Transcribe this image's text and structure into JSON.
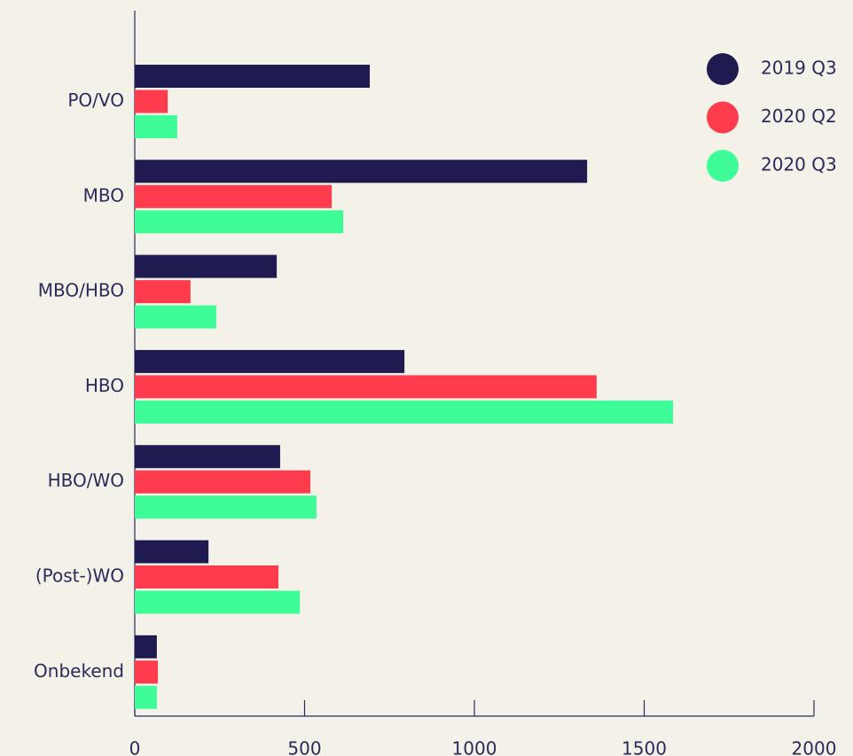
{
  "chart_data": {
    "type": "hbar",
    "categories": [
      "PO/VO",
      "MBO",
      "MBO/HBO",
      "HBO",
      "HBO/WO",
      "(Post-)WO",
      "Onbekend"
    ],
    "series": [
      {
        "name": "2019 Q3",
        "color": "#1f1b50",
        "values": [
          692,
          1332,
          418,
          794,
          428,
          217,
          65
        ]
      },
      {
        "name": "2020 Q2",
        "color": "#ff3b4e",
        "values": [
          97,
          580,
          164,
          1360,
          517,
          423,
          68
        ]
      },
      {
        "name": "2020 Q3",
        "color": "#3efc97",
        "values": [
          125,
          614,
          240,
          1585,
          535,
          486,
          65
        ]
      }
    ],
    "xlim": [
      0,
      2000
    ],
    "xticks": [
      0,
      500,
      1000,
      1500,
      2000
    ],
    "legend": "upper right"
  }
}
